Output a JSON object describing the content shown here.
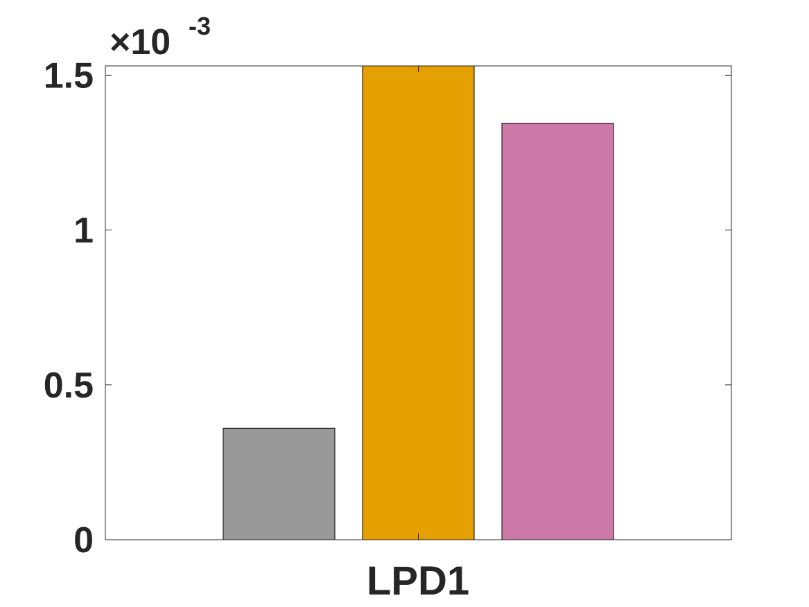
{
  "chart_data": {
    "type": "bar",
    "categories": [
      "LPD1"
    ],
    "series": [
      {
        "values": [
          0.00036
        ],
        "color": "#999999"
      },
      {
        "values": [
          0.00155
        ],
        "color": "#E3A000"
      },
      {
        "values": [
          0.001345
        ],
        "color": "#CC79A7"
      }
    ],
    "ylim": [
      0,
      0.00153
    ],
    "yticks": [
      0,
      0.0005,
      0.001,
      0.0015
    ],
    "ytick_labels": [
      "0",
      "0.5",
      "1",
      "1.5"
    ],
    "y_exponent_label": {
      "times": "×",
      "base": "10",
      "power": "-3"
    },
    "xlabel": "",
    "ylabel": "",
    "grid": false,
    "legend": false
  }
}
